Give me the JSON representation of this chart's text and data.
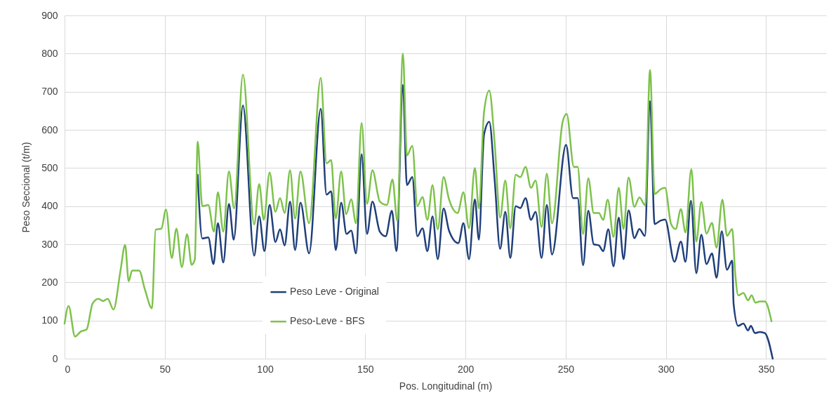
{
  "chart_data": {
    "type": "line",
    "xlabel": "Pos. Longitudinal (m)",
    "ylabel": "Peso Seccional  (t/m)",
    "xlim": [
      0,
      380
    ],
    "xticks": [
      0,
      50,
      100,
      150,
      200,
      250,
      300,
      350
    ],
    "ylim": [
      0,
      900
    ],
    "yticks": [
      0,
      100,
      200,
      300,
      400,
      500,
      600,
      700,
      800,
      900
    ],
    "grid": true,
    "legend": "bottom",
    "line_style": "solid",
    "marker": "none",
    "series": [
      {
        "name": "Peso Leve - Original",
        "color": "#1f3f7a",
        "x": [
          66.4,
          68.7,
          71.7,
          74.3,
          76.5,
          79.2,
          82,
          84.4,
          89,
          94.6,
          97.1,
          99.7,
          102.3,
          105.2,
          107.5,
          109.8,
          112.5,
          115,
          117.7,
          122,
          127.8,
          130.7,
          133,
          135.3,
          138,
          140.7,
          143,
          145.4,
          148.2,
          150.9,
          153.6,
          157.3,
          160.2,
          163.3,
          165.6,
          168.8,
          170.8,
          173.5,
          176,
          178.6,
          181,
          183.6,
          186.2,
          189.1,
          191.8,
          196.5,
          199,
          201.8,
          204.7,
          206.7,
          209.3,
          211.9,
          214.6,
          217.3,
          219.9,
          222.4,
          225.1,
          227.4,
          230,
          232.7,
          235,
          238,
          240.6,
          243.2,
          250.2,
          253.7,
          256,
          258.7,
          261.3,
          264,
          266.6,
          268.7,
          271.3,
          273.9,
          276.5,
          278.9,
          281.4,
          284.3,
          286.8,
          289.5,
          292.1,
          294.4,
          297.3,
          299.6,
          304.3,
          307.5,
          309.8,
          312.5,
          315.2,
          317.7,
          320.3,
          323,
          325.3,
          327.9,
          330.5,
          333.1,
          333.8,
          336.1,
          338.7,
          341,
          342.4,
          344.5,
          346.9,
          349.4,
          353.3
        ],
        "values": [
          482,
          315,
          318,
          248,
          355,
          252,
          406,
          312,
          664,
          270,
          373,
          282,
          403,
          306,
          339,
          297,
          412,
          285,
          409,
          276,
          655,
          430,
          439,
          285,
          409,
          327,
          336,
          276,
          536,
          327,
          412,
          333,
          321,
          388,
          282,
          718,
          455,
          476,
          321,
          342,
          282,
          373,
          261,
          394,
          336,
          303,
          355,
          261,
          418,
          312,
          588,
          621,
          467,
          288,
          385,
          264,
          400,
          395,
          421,
          364,
          385,
          264,
          403,
          273,
          561,
          421,
          421,
          245,
          388,
          300,
          297,
          282,
          339,
          242,
          370,
          261,
          389,
          316,
          340,
          322,
          675,
          353,
          362,
          365,
          254,
          307,
          254,
          414,
          224,
          325,
          248,
          276,
          212,
          334,
          233,
          257,
          144,
          86,
          92,
          74,
          86,
          67,
          70,
          67,
          0
        ]
      },
      {
        "name": "Peso-Leve - BFS",
        "color": "#7dc24b",
        "x": [
          0,
          2,
          5.2,
          8.1,
          11,
          14,
          16.9,
          19.2,
          21.5,
          24.4,
          27.9,
          30.2,
          32,
          33.7,
          37.2,
          40.1,
          43.6,
          45.4,
          48.3,
          50.6,
          53.5,
          55.8,
          58.5,
          61.1,
          63.4,
          65,
          66.4,
          68.7,
          71.7,
          74.5,
          76.5,
          79.2,
          82,
          84.6,
          89,
          94.6,
          97.1,
          99.4,
          102.3,
          105.2,
          107.5,
          109.8,
          112.5,
          115,
          117.7,
          122,
          127.8,
          130.7,
          133,
          135.3,
          138,
          140.5,
          143,
          145.4,
          148.2,
          150.9,
          153.6,
          157.3,
          160.8,
          163.6,
          166,
          168.8,
          170.8,
          173.5,
          176,
          178.6,
          181,
          183.6,
          186.2,
          189.1,
          191.8,
          196.1,
          199,
          201.8,
          204.7,
          206.7,
          209.3,
          211.9,
          214.6,
          217.3,
          219.9,
          222.4,
          225.1,
          227.4,
          230,
          232.7,
          235,
          238,
          240.6,
          243.2,
          248.5,
          250.5,
          254.1,
          256,
          258.7,
          261.3,
          264,
          266.6,
          268.7,
          271,
          273.9,
          276.5,
          278.9,
          281.4,
          284.3,
          286.8,
          289.7,
          292.1,
          294.4,
          297.3,
          299.6,
          302.6,
          304.9,
          307.5,
          309.8,
          312.7,
          315.2,
          317.7,
          320.3,
          323,
          325.3,
          328.2,
          330.5,
          333.1,
          334.6,
          336.1,
          338.7,
          341,
          342.8,
          344.7,
          346.9,
          349.4,
          352.7
        ],
        "values": [
          92,
          138,
          58,
          71,
          77,
          145,
          157,
          151,
          157,
          129,
          231,
          298,
          203,
          231,
          231,
          181,
          132,
          338,
          341,
          391,
          264,
          341,
          240,
          326,
          246,
          260,
          569,
          400,
          403,
          333,
          436,
          333,
          491,
          394,
          745,
          352,
          458,
          364,
          488,
          385,
          421,
          382,
          494,
          367,
          491,
          355,
          736,
          512,
          521,
          367,
          491,
          379,
          418,
          355,
          618,
          406,
          494,
          412,
          403,
          470,
          361,
          800,
          533,
          558,
          400,
          424,
          364,
          455,
          339,
          476,
          418,
          382,
          436,
          342,
          500,
          394,
          648,
          703,
          564,
          370,
          467,
          342,
          482,
          476,
          503,
          448,
          467,
          345,
          485,
          355,
          621,
          642,
          503,
          503,
          327,
          473,
          382,
          382,
          364,
          417,
          319,
          448,
          340,
          475,
          398,
          423,
          402,
          757,
          432,
          444,
          448,
          353,
          340,
          392,
          331,
          497,
          307,
          411,
          328,
          356,
          291,
          417,
          322,
          340,
          224,
          166,
          172,
          153,
          166,
          147,
          150,
          150,
          98
        ]
      }
    ]
  }
}
